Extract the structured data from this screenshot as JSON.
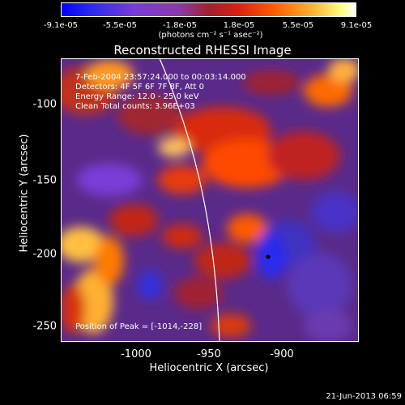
{
  "colorbar": {
    "ticks": [
      "-9.1e-05",
      "-5.5e-05",
      "-1.8e-05",
      "1.8e-05",
      "5.5e-05",
      "9.1e-05"
    ],
    "unit": "(photons cm⁻² s⁻¹ asec⁻²)"
  },
  "title": "Reconstructed RHESSI Image",
  "info": {
    "time": "7-Feb-2004 23:57:24.000 to 00:03:14.000",
    "detectors": "Detectors: 4F 5F 6F 7F 8F, Att 0",
    "energy": "Energy Range: 12.0 - 25.0 keV",
    "method": "Clean     Total counts: 3.96E+03"
  },
  "peak_label": "Position of Peak = [-1014,-228]",
  "axes": {
    "xlabel": "Heliocentric X (arcsec)",
    "ylabel": "Heliocentric Y (arcsec)",
    "xticks": [
      "-1000",
      "-950",
      "-900"
    ],
    "yticks": [
      "-100",
      "-150",
      "-200",
      "-250"
    ]
  },
  "timestamp": "21-Jun-2013 06:59"
}
